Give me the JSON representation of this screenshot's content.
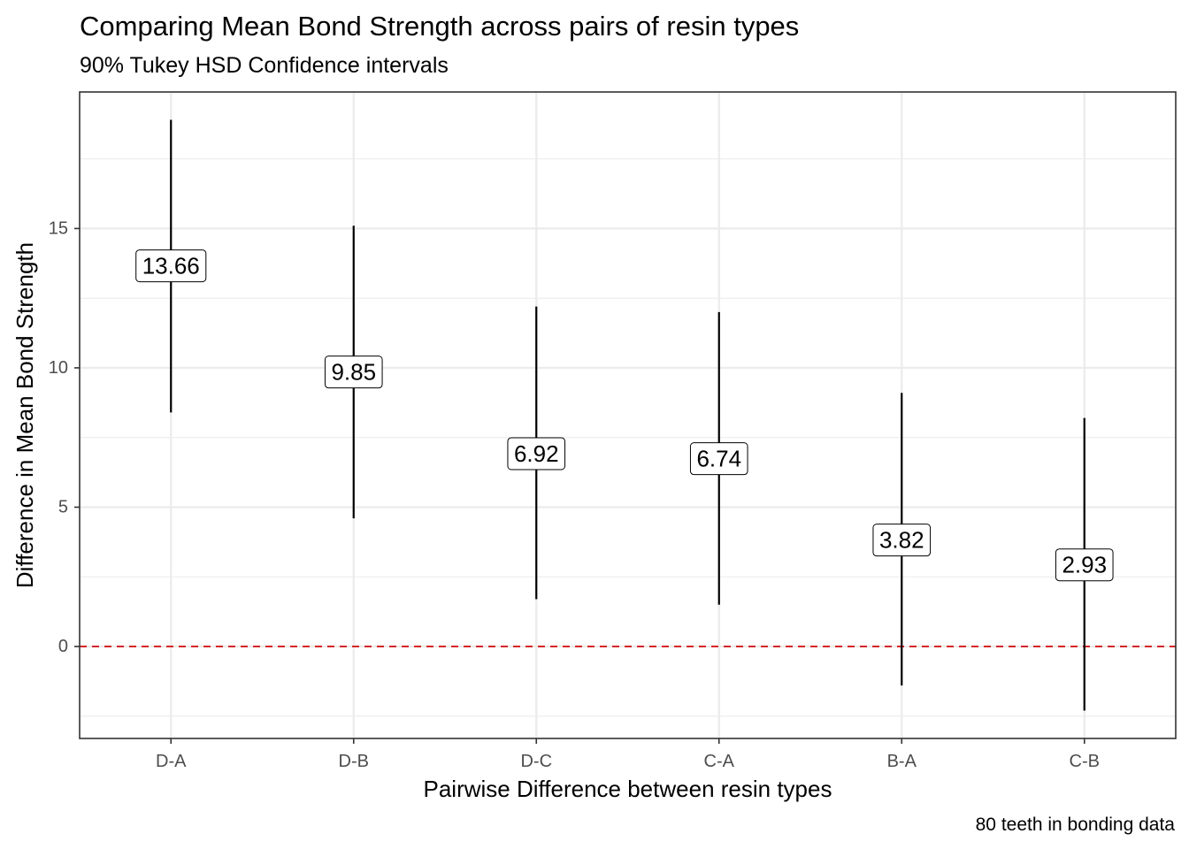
{
  "chart_data": {
    "type": "errorbar",
    "title": "Comparing Mean Bond Strength across pairs of resin types",
    "subtitle": "90% Tukey HSD Confidence intervals",
    "caption": "80 teeth in bonding data",
    "xlabel": "Pairwise Difference between resin types",
    "ylabel": "Difference in Mean Bond Strength",
    "categories": [
      "D-A",
      "D-B",
      "D-C",
      "C-A",
      "B-A",
      "C-B"
    ],
    "estimates": [
      13.66,
      9.85,
      6.92,
      6.74,
      3.82,
      2.93
    ],
    "estimate_labels": [
      "13.66",
      "9.85",
      "6.92",
      "6.74",
      "3.82",
      "2.93"
    ],
    "lower": [
      8.4,
      4.6,
      1.7,
      1.5,
      -1.4,
      -2.3
    ],
    "upper": [
      18.9,
      15.1,
      12.2,
      12.0,
      9.1,
      8.2
    ],
    "yticks": [
      0,
      5,
      10,
      15
    ],
    "ytick_labels": [
      "0",
      "5",
      "10",
      "15"
    ],
    "ylim": [
      -3.3,
      19.9
    ],
    "reference_line": {
      "y": 0,
      "style": "dashed",
      "color": "#d62728"
    },
    "grid": true,
    "colors": {
      "interval": "#000000",
      "panel_border": "#333333",
      "grid": "#ebebeb"
    }
  }
}
